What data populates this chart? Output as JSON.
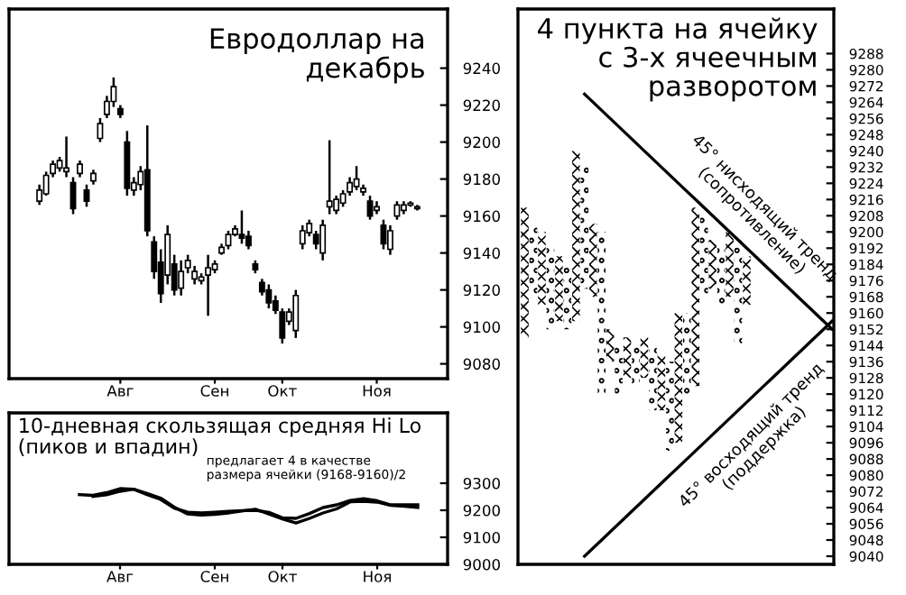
{
  "chart_data": [
    {
      "type": "candlestick",
      "title": "Евродоллар на\nдекабрь",
      "categories": [
        null,
        null,
        null,
        null,
        null,
        null,
        null,
        null,
        null,
        null,
        null,
        null,
        "Авг",
        null,
        null,
        null,
        null,
        null,
        null,
        null,
        null,
        null,
        null,
        null,
        null,
        null,
        "Сен",
        null,
        null,
        null,
        null,
        null,
        null,
        null,
        null,
        null,
        "Окт",
        null,
        null,
        null,
        null,
        null,
        null,
        null,
        null,
        null,
        null,
        null,
        null,
        null,
        "Ноя",
        null,
        null,
        null,
        null,
        null,
        null
      ],
      "ohlc": [
        [
          9168,
          9177,
          9166,
          9174
        ],
        [
          9172,
          9184,
          9171,
          9182
        ],
        [
          9183,
          9190,
          9181,
          9188
        ],
        [
          9186,
          9192,
          9184,
          9190
        ],
        [
          9184,
          9203,
          9181,
          9186
        ],
        [
          9178,
          9181,
          9161,
          9164
        ],
        [
          9183,
          9190,
          9181,
          9188
        ],
        [
          9174,
          9177,
          9165,
          9168
        ],
        [
          9179,
          9185,
          9177,
          9183
        ],
        [
          9202,
          9213,
          9200,
          9210
        ],
        [
          9215,
          9225,
          9213,
          9222
        ],
        [
          9222,
          9235,
          9219,
          9230
        ],
        [
          9218,
          9220,
          9213,
          9215
        ],
        [
          9200,
          9206,
          9171,
          9175
        ],
        [
          9174,
          9181,
          9171,
          9178
        ],
        [
          9177,
          9187,
          9174,
          9184
        ],
        [
          9185,
          9209,
          9149,
          9152
        ],
        [
          9146,
          9149,
          9126,
          9130
        ],
        [
          9135,
          9142,
          9113,
          9118
        ],
        [
          9128,
          9155,
          9123,
          9150
        ],
        [
          9134,
          9139,
          9117,
          9120
        ],
        [
          9121,
          9136,
          9117,
          9130
        ],
        [
          9132,
          9139,
          9129,
          9136
        ],
        [
          9126,
          9133,
          9123,
          9130
        ],
        [
          9125,
          9129,
          9123,
          9127
        ],
        [
          9128,
          9139,
          9106,
          9132
        ],
        [
          9131,
          9136,
          9129,
          9134
        ],
        [
          9140,
          9145,
          9139,
          9143
        ],
        [
          9144,
          9152,
          9142,
          9150
        ],
        [
          9150,
          9155,
          9149,
          9153
        ],
        [
          9150,
          9163,
          9145,
          9148
        ],
        [
          9149,
          9152,
          9142,
          9144
        ],
        [
          9134,
          9136,
          9129,
          9131
        ],
        [
          9124,
          9126,
          9117,
          9119
        ],
        [
          9120,
          9123,
          9110,
          9113
        ],
        [
          9114,
          9117,
          9107,
          9109
        ],
        [
          9108,
          9110,
          9091,
          9094
        ],
        [
          9103,
          9110,
          9101,
          9108
        ],
        [
          9098,
          9120,
          9094,
          9117
        ],
        [
          9145,
          9155,
          9142,
          9152
        ],
        [
          9151,
          9158,
          9149,
          9156
        ],
        [
          9150,
          9152,
          9142,
          9145
        ],
        [
          9140,
          9158,
          9136,
          9155
        ],
        [
          9165,
          9201,
          9161,
          9168
        ],
        [
          9163,
          9171,
          9161,
          9169
        ],
        [
          9167,
          9174,
          9165,
          9172
        ],
        [
          9173,
          9181,
          9171,
          9178
        ],
        [
          9176,
          9187,
          9174,
          9180
        ],
        [
          9173,
          9177,
          9171,
          9175
        ],
        [
          9168,
          9171,
          9158,
          9160
        ],
        [
          9163,
          9168,
          9161,
          9165
        ],
        [
          9155,
          9158,
          9142,
          9145
        ],
        [
          9142,
          9155,
          9139,
          9152
        ],
        [
          9160,
          9168,
          9158,
          9166
        ],
        [
          9163,
          9168,
          9161,
          9166
        ],
        [
          9166,
          9168,
          9165,
          9167
        ],
        [
          9164,
          9166,
          9163,
          9165
        ]
      ],
      "color": "#000000",
      "ylim": [
        9072,
        9272
      ],
      "yticks": [
        9080,
        9100,
        9120,
        9140,
        9160,
        9180,
        9200,
        9220,
        9240
      ]
    },
    {
      "type": "line",
      "title": "10-дневная скользящая средняя Hi Lo\n(пиков и впадин)",
      "annotations": [
        "предлагает 4 в качестве\nразмера ячейки (9168-9160)/2"
      ],
      "series": [
        {
          "color": "#000000",
          "values": [
            null,
            null,
            null,
            9258,
            9255,
            9265,
            9280,
            9278,
            9258,
            9240,
            9208,
            9193,
            9190,
            9193,
            9196,
            9199,
            9200,
            9192,
            9172,
            9170,
            9188,
            9210,
            9220,
            9236,
            9243,
            9235,
            9220,
            9220,
            9220
          ]
        },
        {
          "color": "#000000",
          "values": [
            null,
            null,
            null,
            null,
            9251,
            9257,
            9270,
            9278,
            9262,
            9245,
            9212,
            9186,
            9182,
            9185,
            9190,
            9197,
            9204,
            9186,
            9168,
            9153,
            9170,
            9190,
            9205,
            9231,
            9233,
            9230,
            9218,
            9215,
            9210
          ]
        }
      ],
      "categories": [
        null,
        null,
        null,
        null,
        null,
        null,
        "Авг",
        null,
        null,
        null,
        null,
        null,
        null,
        "Сен",
        null,
        null,
        null,
        null,
        "Окт",
        null,
        null,
        null,
        null,
        null,
        null,
        "Ноя",
        null,
        null,
        null
      ],
      "ylim": [
        9000,
        9560
      ],
      "yticks": [
        9000,
        9100,
        9200,
        9300
      ]
    },
    {
      "type": "bar",
      "title": "4 пункта на ячейку\nс 3-х ячеечным\nразворотом",
      "tick_labels": "y",
      "categories": [
        null,
        null,
        null,
        null,
        null,
        null,
        null,
        null,
        null,
        null,
        null,
        null,
        null,
        null,
        null,
        null,
        null,
        null,
        null,
        null,
        null,
        null,
        null,
        null,
        null,
        null,
        null,
        null,
        null,
        null,
        null,
        null,
        null,
        null,
        null,
        null,
        null
      ],
      "series": [
        {
          "color": "#000000",
          "marker": "cross",
          "base": [
            9148,
            null,
            9164,
            null,
            9156,
            null,
            9156,
            null,
            9168,
            null,
            9136,
            null,
            9128,
            null,
            9128,
            null,
            9112,
            null,
            9096,
            null,
            9124,
            null,
            9172,
            null,
            9168,
            null,
            9164,
            null,
            null,
            null,
            null,
            null,
            null,
            null,
            null,
            null,
            null
          ],
          "values": [
            64,
            null,
            36,
            null,
            32,
            null,
            84,
            null,
            36,
            null,
            16,
            null,
            20,
            null,
            20,
            null,
            28,
            null,
            64,
            null,
            88,
            null,
            24,
            null,
            32,
            null,
            24,
            null,
            null,
            null,
            null,
            null,
            null,
            null,
            null,
            null,
            null
          ]
        },
        {
          "color": "#000000",
          "marker": "circle",
          "base": [
            null,
            9168,
            null,
            9152,
            null,
            9152,
            null,
            9172,
            null,
            9120,
            null,
            9120,
            null,
            9124,
            null,
            9112,
            null,
            9092,
            null,
            9120,
            null,
            9168,
            null,
            9164,
            null,
            9144,
            null,
            null,
            null,
            null,
            null,
            null,
            null,
            null,
            null,
            null,
            null
          ],
          "values": [
            null,
            36,
            null,
            40,
            null,
            32,
            null,
            60,
            null,
            80,
            null,
            24,
            null,
            20,
            null,
            32,
            null,
            44,
            null,
            40,
            null,
            40,
            null,
            28,
            null,
            52,
            null,
            null,
            null,
            null,
            null,
            null,
            null,
            null,
            null,
            null,
            null
          ]
        },
        {
          "type": "line",
          "color": "#000000",
          "values": [
            null,
            null,
            null,
            null,
            null,
            null,
            null,
            9268,
            9264,
            9260,
            9256,
            9252,
            9248,
            9244,
            9240,
            9236,
            9232,
            9228,
            9224,
            9220,
            9216,
            9212,
            9208,
            9204,
            9200,
            9196,
            9192,
            9188,
            9184,
            9180,
            9176,
            9172,
            9168,
            9164,
            9160,
            9156,
            9152
          ]
        },
        {
          "type": "line",
          "color": "#000000",
          "values": [
            null,
            null,
            null,
            null,
            null,
            null,
            null,
            9040,
            9044,
            9048,
            9052,
            9056,
            9060,
            9064,
            9068,
            9072,
            9076,
            9080,
            9084,
            9088,
            9092,
            9096,
            9100,
            9104,
            9108,
            9112,
            9116,
            9120,
            9124,
            9128,
            9132,
            9136,
            9140,
            9144,
            9148,
            9152,
            9156
          ]
        }
      ],
      "annotations": [
        "45° нисходящий тренд\n(сопротивление)",
        "45° восходящий тренд\n(поддержка)"
      ],
      "ylim": [
        9036,
        9310
      ],
      "yticks": [
        9040,
        9048,
        9056,
        9064,
        9072,
        9080,
        9088,
        9096,
        9104,
        9112,
        9120,
        9128,
        9136,
        9144,
        9152,
        9160,
        9168,
        9176,
        9184,
        9192,
        9200,
        9208,
        9216,
        9224,
        9232,
        9240,
        9248,
        9256,
        9264,
        9272,
        9280,
        9288
      ]
    }
  ]
}
